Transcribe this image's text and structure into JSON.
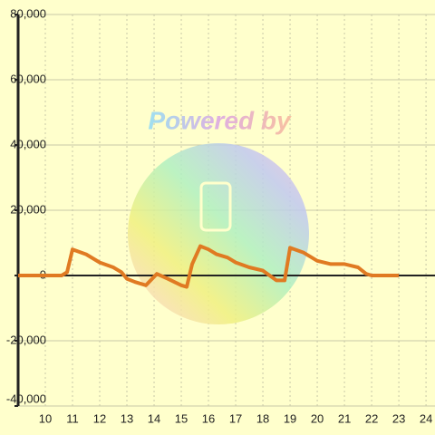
{
  "chart_data": {
    "type": "line",
    "watermark": "Powered by",
    "x": [
      9,
      10.6,
      10.8,
      11,
      11.5,
      12,
      12.5,
      12.8,
      13,
      13.3,
      13.7,
      14.1,
      14.5,
      15,
      15.2,
      15.4,
      15.7,
      16,
      16.3,
      16.7,
      17,
      17.5,
      18,
      18.5,
      18.8,
      19,
      19.5,
      20,
      20.5,
      21,
      21.5,
      21.8,
      22,
      23
    ],
    "series": [
      {
        "color": "#e07a22",
        "values": [
          0,
          0,
          1000,
          8000,
          6500,
          4000,
          2500,
          1000,
          -1000,
          -2000,
          -3000,
          500,
          -1000,
          -3000,
          -3500,
          3500,
          9000,
          8000,
          6500,
          5500,
          4000,
          2500,
          1500,
          -1500,
          -1500,
          8500,
          7000,
          4500,
          3500,
          3500,
          2500,
          500,
          0,
          0
        ]
      }
    ],
    "xlim": [
      9,
      24.33
    ],
    "ylim": [
      -40000,
      80000
    ],
    "xticks": [
      10,
      11,
      12,
      13,
      14,
      15,
      16,
      17,
      18,
      19,
      20,
      21,
      22,
      23,
      24
    ],
    "yticks": [
      {
        "value": -40000,
        "label": "-40,000"
      },
      {
        "value": -20000,
        "label": "-20,000"
      },
      0,
      {
        "value": 20000,
        "label": "20,000"
      },
      {
        "value": 40000,
        "label": "40,000"
      },
      {
        "value": 60000,
        "label": "60,000"
      },
      {
        "value": 80000,
        "label": "80,000"
      }
    ],
    "grid": true
  }
}
